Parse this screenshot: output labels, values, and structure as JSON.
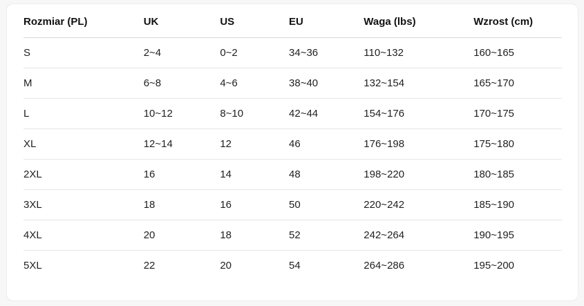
{
  "page": {
    "background_color": "#f7f7f8"
  },
  "card": {
    "background_color": "#ffffff",
    "border_color": "#ececec"
  },
  "table": {
    "columns": [
      {
        "key": "size",
        "label": "Rozmiar (PL)",
        "width": "22.3%"
      },
      {
        "key": "uk",
        "label": "UK",
        "width": "14.2%"
      },
      {
        "key": "us",
        "label": "US",
        "width": "12.8%"
      },
      {
        "key": "eu",
        "label": "EU",
        "width": "13.9%"
      },
      {
        "key": "waga",
        "label": "Waga (lbs)",
        "width": "20.4%"
      },
      {
        "key": "wzrost",
        "label": "Wzrost (cm)",
        "width": "16.4%"
      }
    ],
    "rows": [
      {
        "size": "S",
        "uk": "2~4",
        "us": "0~2",
        "eu": "34~36",
        "waga": "110~132",
        "wzrost": "160~165"
      },
      {
        "size": "M",
        "uk": "6~8",
        "us": "4~6",
        "eu": "38~40",
        "waga": "132~154",
        "wzrost": "165~170"
      },
      {
        "size": "L",
        "uk": "10~12",
        "us": "8~10",
        "eu": "42~44",
        "waga": "154~176",
        "wzrost": "170~175"
      },
      {
        "size": "XL",
        "uk": "12~14",
        "us": "12",
        "eu": "46",
        "waga": "176~198",
        "wzrost": "175~180"
      },
      {
        "size": "2XL",
        "uk": "16",
        "us": "14",
        "eu": "48",
        "waga": "198~220",
        "wzrost": "180~185"
      },
      {
        "size": "3XL",
        "uk": "18",
        "us": "16",
        "eu": "50",
        "waga": "220~242",
        "wzrost": "185~190"
      },
      {
        "size": "4XL",
        "uk": "20",
        "us": "18",
        "eu": "52",
        "waga": "242~264",
        "wzrost": "190~195"
      },
      {
        "size": "5XL",
        "uk": "22",
        "us": "20",
        "eu": "54",
        "waga": "264~286",
        "wzrost": "195~200"
      }
    ],
    "text_color": "#1f1f1f",
    "header_text_color": "#111111",
    "row_divider_color": "#e6e6e6",
    "header_divider_color": "#d8d8d8"
  }
}
